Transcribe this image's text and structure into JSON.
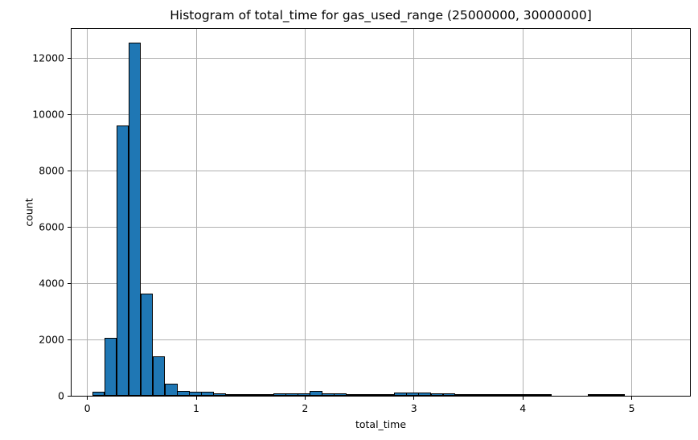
{
  "chart_data": {
    "type": "bar",
    "subtype": "histogram",
    "title": "Histogram of total_time for gas_used_range (25000000, 30000000]",
    "xlabel": "total_time",
    "ylabel": "count",
    "bin_start": 0.045,
    "bin_width": 0.111,
    "counts": [
      150,
      2050,
      9590,
      12550,
      3620,
      1400,
      440,
      170,
      130,
      140,
      100,
      60,
      55,
      55,
      60,
      80,
      100,
      95,
      160,
      95,
      80,
      40,
      65,
      20,
      20,
      115,
      125,
      125,
      90,
      90,
      45,
      15,
      15,
      15,
      15,
      15,
      15,
      15,
      0,
      0,
      0,
      15,
      15,
      12
    ],
    "xlim": [
      -0.145,
      5.535
    ],
    "ylim": [
      0,
      13030
    ],
    "x_ticks": [
      0,
      1,
      2,
      3,
      4,
      5
    ],
    "x_tick_labels": [
      "0",
      "1",
      "2",
      "3",
      "4",
      "5"
    ],
    "y_ticks": [
      0,
      2000,
      4000,
      6000,
      8000,
      10000,
      12000
    ],
    "y_tick_labels": [
      "0",
      "2000",
      "4000",
      "6000",
      "8000",
      "10000",
      "12000"
    ],
    "grid": true,
    "legend": "none",
    "bar_color": "#1f77b4",
    "bar_edge_color": "#000000",
    "grid_color": "#b0b0b0",
    "axis_color": "#000000",
    "background_color": "#ffffff"
  }
}
